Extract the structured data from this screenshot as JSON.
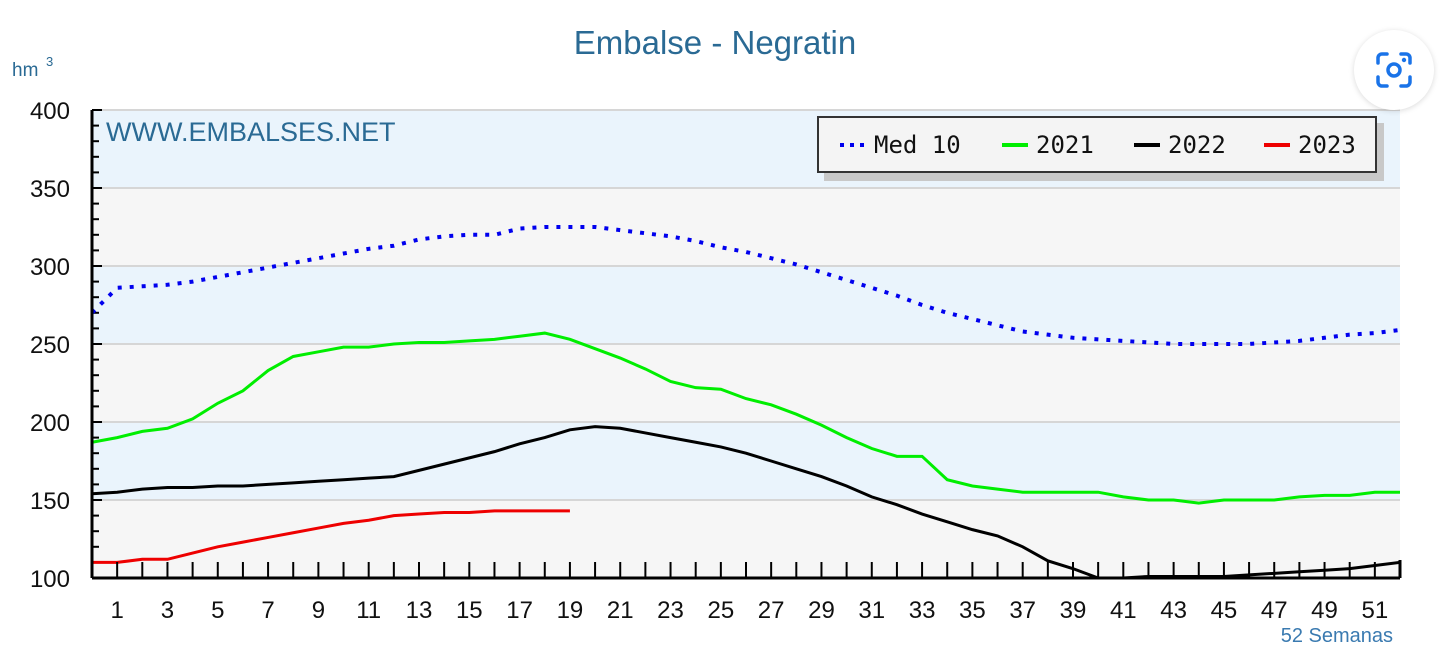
{
  "chart_data": {
    "type": "line",
    "title": "Embalse - Negratin",
    "ylabel": "hm3",
    "ylabel_main": "hm",
    "ylabel_sup": "3",
    "xlabel": "52 Semanas",
    "watermark": "WWW.EMBALSES.NET",
    "ylim": [
      100,
      400
    ],
    "xlim": [
      0,
      52
    ],
    "yticks": [
      100,
      150,
      200,
      250,
      300,
      350,
      400
    ],
    "xticks": [
      1,
      3,
      5,
      7,
      9,
      11,
      13,
      15,
      17,
      19,
      21,
      23,
      25,
      27,
      29,
      31,
      33,
      35,
      37,
      39,
      41,
      43,
      45,
      47,
      49,
      51
    ],
    "grid": true,
    "legend_position": "top-right",
    "series": [
      {
        "name": "Med 10",
        "color": "#0000ee",
        "style": "dotted",
        "x": [
          0,
          1,
          2,
          3,
          4,
          5,
          6,
          7,
          8,
          9,
          10,
          11,
          12,
          13,
          14,
          15,
          16,
          17,
          18,
          19,
          20,
          21,
          22,
          23,
          24,
          25,
          26,
          27,
          28,
          29,
          30,
          31,
          32,
          33,
          34,
          35,
          36,
          37,
          38,
          39,
          40,
          41,
          42,
          43,
          44,
          45,
          46,
          47,
          48,
          49,
          50,
          51,
          52
        ],
        "values": [
          270,
          286,
          287,
          288,
          290,
          293,
          296,
          299,
          302,
          305,
          308,
          311,
          313,
          317,
          319,
          320,
          320,
          324,
          325,
          325,
          325,
          323,
          321,
          319,
          316,
          312,
          309,
          305,
          301,
          296,
          291,
          286,
          281,
          275,
          270,
          266,
          262,
          258,
          256,
          254,
          253,
          252,
          251,
          250,
          250,
          250,
          250,
          251,
          252,
          254,
          256,
          257,
          259
        ]
      },
      {
        "name": "2021",
        "color": "#00ee00",
        "style": "solid",
        "x": [
          0,
          1,
          2,
          3,
          4,
          5,
          6,
          7,
          8,
          9,
          10,
          11,
          12,
          13,
          14,
          15,
          16,
          17,
          18,
          19,
          20,
          21,
          22,
          23,
          24,
          25,
          26,
          27,
          28,
          29,
          30,
          31,
          32,
          33,
          34,
          35,
          36,
          37,
          38,
          39,
          40,
          41,
          42,
          43,
          44,
          45,
          46,
          47,
          48,
          49,
          50,
          51,
          52
        ],
        "values": [
          187,
          190,
          194,
          196,
          202,
          212,
          220,
          233,
          242,
          245,
          248,
          248,
          250,
          251,
          251,
          252,
          253,
          255,
          257,
          253,
          247,
          241,
          234,
          226,
          222,
          221,
          215,
          211,
          205,
          198,
          190,
          183,
          178,
          178,
          163,
          159,
          157,
          155,
          155,
          155,
          155,
          152,
          150,
          150,
          148,
          150,
          150,
          150,
          152,
          153,
          153,
          155,
          155
        ]
      },
      {
        "name": "2022",
        "color": "#000000",
        "style": "solid",
        "x": [
          0,
          1,
          2,
          3,
          4,
          5,
          6,
          7,
          8,
          9,
          10,
          11,
          12,
          13,
          14,
          15,
          16,
          17,
          18,
          19,
          20,
          21,
          22,
          23,
          24,
          25,
          26,
          27,
          28,
          29,
          30,
          31,
          32,
          33,
          34,
          35,
          36,
          37,
          38,
          39,
          40,
          41,
          42,
          43,
          44,
          45,
          46,
          47,
          48,
          49,
          50,
          51,
          52
        ],
        "values": [
          154,
          155,
          157,
          158,
          158,
          159,
          159,
          160,
          161,
          162,
          163,
          164,
          165,
          169,
          173,
          177,
          181,
          186,
          190,
          195,
          197,
          196,
          193,
          190,
          187,
          184,
          180,
          175,
          170,
          165,
          159,
          152,
          147,
          141,
          136,
          131,
          127,
          120,
          111,
          106,
          100,
          100,
          101,
          101,
          101,
          101,
          102,
          103,
          104,
          105,
          106,
          108,
          110
        ]
      },
      {
        "name": "2023",
        "color": "#ee0000",
        "style": "solid",
        "x": [
          0,
          1,
          2,
          3,
          4,
          5,
          6,
          7,
          8,
          9,
          10,
          11,
          12,
          13,
          14,
          15,
          16,
          17,
          18,
          19
        ],
        "values": [
          110,
          110,
          112,
          112,
          116,
          120,
          123,
          126,
          129,
          132,
          135,
          137,
          140,
          141,
          142,
          142,
          143,
          143,
          143,
          143
        ]
      }
    ]
  },
  "ui": {
    "lens_button": "visual-search"
  }
}
